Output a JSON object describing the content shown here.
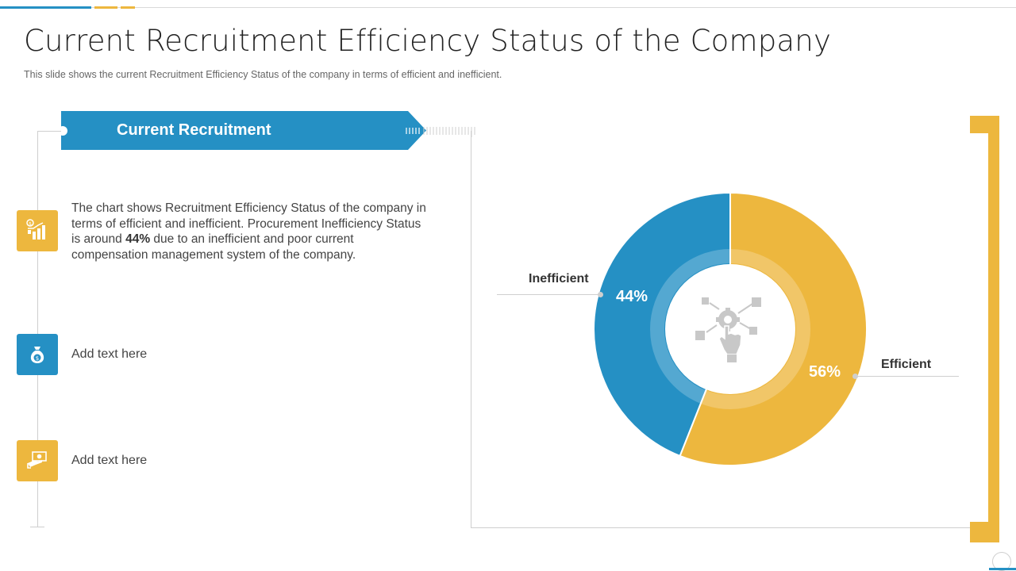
{
  "slide": {
    "title": "Current Recruitment Efficiency Status of the Company",
    "subtitle": "This slide shows the current Recruitment Efficiency Status of the company in terms of efficient and inefficient."
  },
  "banner": {
    "label": "Current Recruitment"
  },
  "description": {
    "part1": "The chart shows Recruitment Efficiency Status of the company in terms of efficient and inefficient. Procurement Inefficiency Status is around ",
    "highlight": "44%",
    "part2": " due to an inefficient and poor current compensation management system of the company."
  },
  "items": [
    {
      "label": "Add text here",
      "icon": "money-bag-icon"
    },
    {
      "label": "Add text here",
      "icon": "hand-money-icon"
    }
  ],
  "first_icon": "bar-chart-dollar-icon",
  "center_icon": "hand-gear-network-icon",
  "colors": {
    "blue": "#2590c4",
    "yellow": "#edb73e",
    "line": "#cfcfcf"
  },
  "chart_data": {
    "type": "pie",
    "variant": "donut",
    "categories": [
      "Inefficient",
      "Efficient"
    ],
    "values": [
      44,
      56
    ],
    "value_labels": [
      "44%",
      "56%"
    ],
    "colors": [
      "#2590c4",
      "#edb73e"
    ]
  }
}
